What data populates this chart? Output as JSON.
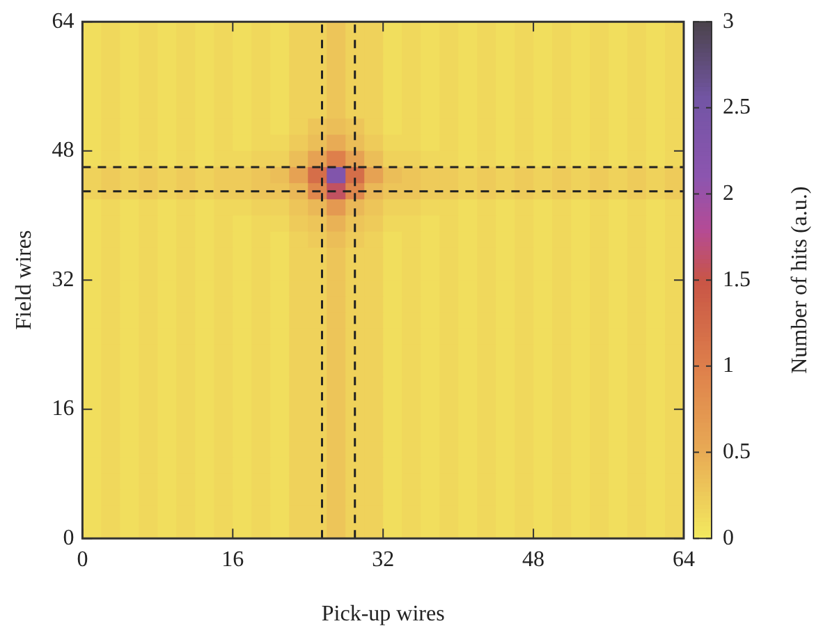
{
  "chart_data": {
    "type": "heatmap",
    "xlabel": "Pick-up wires",
    "ylabel": "Field wires",
    "clabel": "Number of hits (a.u.)",
    "xlim": [
      0,
      64
    ],
    "ylim": [
      0,
      64
    ],
    "xticks": [
      0,
      16,
      32,
      48,
      64
    ],
    "yticks": [
      0,
      16,
      32,
      48,
      64
    ],
    "clim": [
      0,
      3
    ],
    "cticks": [
      0,
      0.5,
      1,
      1.5,
      2,
      2.5,
      3
    ],
    "ref_lines": [
      {
        "axis": "x",
        "value": 25.5,
        "color": "#222222",
        "line_style": "dashed"
      },
      {
        "axis": "x",
        "value": 29,
        "color": "#222222",
        "line_style": "dashed"
      },
      {
        "axis": "y",
        "value": 43,
        "color": "#222222",
        "line_style": "dashed"
      },
      {
        "axis": "y",
        "value": 46,
        "color": "#222222",
        "line_style": "dashed"
      }
    ],
    "cells": [
      [
        0.1,
        0.15,
        0.1,
        0.15,
        0.1,
        0.15,
        0.1,
        0.15,
        0.1,
        0.15,
        0.1,
        0.2,
        0.2,
        0.3,
        0.2,
        0.2,
        0.1,
        0.15,
        0.1,
        0.15,
        0.1,
        0.15,
        0.1,
        0.15,
        0.1,
        0.15,
        0.1,
        0.15,
        0.1,
        0.15,
        0.1,
        0.15
      ],
      [
        0.1,
        0.15,
        0.1,
        0.15,
        0.1,
        0.15,
        0.1,
        0.15,
        0.1,
        0.15,
        0.1,
        0.2,
        0.2,
        0.3,
        0.2,
        0.2,
        0.1,
        0.15,
        0.1,
        0.15,
        0.1,
        0.15,
        0.1,
        0.15,
        0.1,
        0.15,
        0.1,
        0.15,
        0.1,
        0.15,
        0.1,
        0.15
      ],
      [
        0.1,
        0.15,
        0.1,
        0.15,
        0.1,
        0.15,
        0.1,
        0.15,
        0.1,
        0.15,
        0.1,
        0.2,
        0.2,
        0.3,
        0.2,
        0.2,
        0.1,
        0.15,
        0.1,
        0.15,
        0.1,
        0.15,
        0.1,
        0.15,
        0.1,
        0.15,
        0.1,
        0.15,
        0.1,
        0.15,
        0.1,
        0.15
      ],
      [
        0.1,
        0.15,
        0.1,
        0.15,
        0.1,
        0.15,
        0.1,
        0.15,
        0.1,
        0.15,
        0.1,
        0.2,
        0.2,
        0.3,
        0.2,
        0.2,
        0.1,
        0.15,
        0.1,
        0.15,
        0.1,
        0.15,
        0.1,
        0.15,
        0.1,
        0.15,
        0.1,
        0.15,
        0.1,
        0.15,
        0.1,
        0.15
      ],
      [
        0.1,
        0.15,
        0.1,
        0.15,
        0.1,
        0.15,
        0.1,
        0.15,
        0.1,
        0.15,
        0.1,
        0.2,
        0.2,
        0.3,
        0.2,
        0.2,
        0.1,
        0.15,
        0.1,
        0.15,
        0.1,
        0.15,
        0.1,
        0.15,
        0.1,
        0.15,
        0.1,
        0.15,
        0.1,
        0.15,
        0.1,
        0.15
      ],
      [
        0.1,
        0.15,
        0.1,
        0.15,
        0.1,
        0.15,
        0.1,
        0.15,
        0.1,
        0.15,
        0.1,
        0.2,
        0.2,
        0.3,
        0.2,
        0.2,
        0.1,
        0.15,
        0.1,
        0.15,
        0.1,
        0.15,
        0.1,
        0.15,
        0.1,
        0.15,
        0.1,
        0.15,
        0.1,
        0.15,
        0.1,
        0.15
      ],
      [
        0.1,
        0.15,
        0.1,
        0.15,
        0.1,
        0.15,
        0.1,
        0.15,
        0.1,
        0.15,
        0.1,
        0.2,
        0.3,
        0.35,
        0.3,
        0.2,
        0.1,
        0.15,
        0.1,
        0.15,
        0.1,
        0.15,
        0.1,
        0.15,
        0.1,
        0.15,
        0.1,
        0.15,
        0.1,
        0.15,
        0.1,
        0.15
      ],
      [
        0.1,
        0.15,
        0.1,
        0.15,
        0.1,
        0.15,
        0.1,
        0.15,
        0.1,
        0.15,
        0.15,
        0.25,
        0.35,
        0.5,
        0.35,
        0.25,
        0.15,
        0.15,
        0.1,
        0.15,
        0.1,
        0.15,
        0.1,
        0.15,
        0.1,
        0.15,
        0.1,
        0.15,
        0.1,
        0.15,
        0.1,
        0.15
      ],
      [
        0.1,
        0.15,
        0.1,
        0.15,
        0.1,
        0.15,
        0.1,
        0.15,
        0.15,
        0.2,
        0.2,
        0.35,
        0.6,
        1.0,
        0.6,
        0.35,
        0.2,
        0.2,
        0.15,
        0.15,
        0.1,
        0.15,
        0.1,
        0.15,
        0.1,
        0.15,
        0.1,
        0.15,
        0.1,
        0.15,
        0.1,
        0.15
      ],
      [
        0.2,
        0.25,
        0.2,
        0.25,
        0.2,
        0.25,
        0.2,
        0.25,
        0.25,
        0.3,
        0.35,
        0.6,
        1.2,
        2.3,
        1.2,
        0.6,
        0.35,
        0.3,
        0.25,
        0.25,
        0.2,
        0.25,
        0.2,
        0.25,
        0.2,
        0.25,
        0.2,
        0.25,
        0.2,
        0.25,
        0.2,
        0.25
      ],
      [
        0.2,
        0.25,
        0.2,
        0.25,
        0.2,
        0.25,
        0.2,
        0.25,
        0.25,
        0.3,
        0.3,
        0.4,
        0.9,
        1.6,
        0.9,
        0.4,
        0.3,
        0.3,
        0.25,
        0.25,
        0.2,
        0.25,
        0.2,
        0.25,
        0.2,
        0.25,
        0.2,
        0.25,
        0.2,
        0.25,
        0.2,
        0.25
      ],
      [
        0.1,
        0.15,
        0.1,
        0.15,
        0.1,
        0.15,
        0.1,
        0.15,
        0.15,
        0.2,
        0.2,
        0.3,
        0.4,
        0.7,
        0.4,
        0.3,
        0.2,
        0.2,
        0.15,
        0.15,
        0.1,
        0.15,
        0.1,
        0.15,
        0.1,
        0.15,
        0.1,
        0.15,
        0.1,
        0.15,
        0.1,
        0.15
      ],
      [
        0.1,
        0.15,
        0.1,
        0.15,
        0.1,
        0.15,
        0.1,
        0.15,
        0.1,
        0.15,
        0.15,
        0.25,
        0.3,
        0.45,
        0.3,
        0.25,
        0.15,
        0.15,
        0.1,
        0.15,
        0.1,
        0.15,
        0.1,
        0.15,
        0.1,
        0.15,
        0.1,
        0.15,
        0.1,
        0.15,
        0.1,
        0.15
      ],
      [
        0.1,
        0.15,
        0.1,
        0.15,
        0.1,
        0.15,
        0.1,
        0.15,
        0.1,
        0.15,
        0.1,
        0.2,
        0.25,
        0.35,
        0.25,
        0.2,
        0.1,
        0.15,
        0.1,
        0.15,
        0.1,
        0.15,
        0.1,
        0.15,
        0.1,
        0.15,
        0.1,
        0.15,
        0.1,
        0.15,
        0.1,
        0.15
      ],
      [
        0.1,
        0.15,
        0.1,
        0.15,
        0.1,
        0.15,
        0.1,
        0.15,
        0.1,
        0.15,
        0.1,
        0.2,
        0.2,
        0.3,
        0.2,
        0.2,
        0.1,
        0.15,
        0.1,
        0.15,
        0.1,
        0.15,
        0.1,
        0.15,
        0.1,
        0.15,
        0.1,
        0.15,
        0.1,
        0.15,
        0.1,
        0.15
      ],
      [
        0.1,
        0.15,
        0.1,
        0.15,
        0.1,
        0.15,
        0.1,
        0.15,
        0.1,
        0.15,
        0.1,
        0.2,
        0.2,
        0.3,
        0.2,
        0.2,
        0.1,
        0.15,
        0.1,
        0.15,
        0.1,
        0.15,
        0.1,
        0.15,
        0.1,
        0.15,
        0.1,
        0.15,
        0.1,
        0.15,
        0.1,
        0.15
      ],
      [
        0.1,
        0.15,
        0.1,
        0.15,
        0.1,
        0.15,
        0.1,
        0.15,
        0.1,
        0.15,
        0.1,
        0.2,
        0.2,
        0.3,
        0.2,
        0.2,
        0.1,
        0.15,
        0.1,
        0.15,
        0.1,
        0.15,
        0.1,
        0.15,
        0.1,
        0.15,
        0.1,
        0.15,
        0.1,
        0.15,
        0.1,
        0.15
      ],
      [
        0.1,
        0.15,
        0.1,
        0.15,
        0.1,
        0.15,
        0.1,
        0.15,
        0.1,
        0.15,
        0.1,
        0.2,
        0.2,
        0.3,
        0.2,
        0.2,
        0.1,
        0.15,
        0.1,
        0.15,
        0.1,
        0.15,
        0.1,
        0.15,
        0.1,
        0.15,
        0.1,
        0.15,
        0.1,
        0.15,
        0.1,
        0.15
      ],
      [
        0.1,
        0.15,
        0.1,
        0.15,
        0.1,
        0.15,
        0.1,
        0.15,
        0.1,
        0.15,
        0.1,
        0.2,
        0.2,
        0.3,
        0.2,
        0.2,
        0.1,
        0.15,
        0.1,
        0.15,
        0.1,
        0.15,
        0.1,
        0.15,
        0.1,
        0.15,
        0.1,
        0.15,
        0.1,
        0.15,
        0.1,
        0.15
      ],
      [
        0.1,
        0.15,
        0.1,
        0.15,
        0.1,
        0.15,
        0.1,
        0.15,
        0.1,
        0.15,
        0.1,
        0.2,
        0.2,
        0.3,
        0.2,
        0.2,
        0.1,
        0.15,
        0.1,
        0.15,
        0.1,
        0.15,
        0.1,
        0.15,
        0.1,
        0.15,
        0.1,
        0.15,
        0.1,
        0.15,
        0.1,
        0.15
      ],
      [
        0.1,
        0.15,
        0.1,
        0.15,
        0.1,
        0.15,
        0.1,
        0.15,
        0.1,
        0.15,
        0.1,
        0.2,
        0.2,
        0.3,
        0.2,
        0.2,
        0.1,
        0.15,
        0.1,
        0.15,
        0.1,
        0.15,
        0.1,
        0.15,
        0.1,
        0.15,
        0.1,
        0.15,
        0.1,
        0.15,
        0.1,
        0.15
      ],
      [
        0.1,
        0.15,
        0.1,
        0.15,
        0.1,
        0.15,
        0.1,
        0.15,
        0.1,
        0.15,
        0.1,
        0.2,
        0.2,
        0.3,
        0.2,
        0.2,
        0.1,
        0.15,
        0.1,
        0.15,
        0.1,
        0.15,
        0.1,
        0.15,
        0.1,
        0.15,
        0.1,
        0.15,
        0.1,
        0.15,
        0.1,
        0.15
      ],
      [
        0.1,
        0.15,
        0.1,
        0.15,
        0.1,
        0.15,
        0.1,
        0.15,
        0.1,
        0.15,
        0.1,
        0.2,
        0.2,
        0.3,
        0.2,
        0.2,
        0.1,
        0.15,
        0.1,
        0.15,
        0.1,
        0.15,
        0.1,
        0.15,
        0.1,
        0.15,
        0.1,
        0.15,
        0.1,
        0.15,
        0.1,
        0.15
      ],
      [
        0.1,
        0.15,
        0.1,
        0.15,
        0.1,
        0.15,
        0.1,
        0.15,
        0.1,
        0.15,
        0.1,
        0.2,
        0.2,
        0.3,
        0.2,
        0.2,
        0.1,
        0.15,
        0.1,
        0.15,
        0.1,
        0.15,
        0.1,
        0.15,
        0.1,
        0.15,
        0.1,
        0.15,
        0.1,
        0.15,
        0.1,
        0.15
      ],
      [
        0.1,
        0.15,
        0.1,
        0.15,
        0.1,
        0.15,
        0.1,
        0.15,
        0.1,
        0.15,
        0.1,
        0.2,
        0.2,
        0.3,
        0.2,
        0.2,
        0.1,
        0.15,
        0.1,
        0.15,
        0.1,
        0.15,
        0.1,
        0.15,
        0.1,
        0.15,
        0.1,
        0.15,
        0.1,
        0.15,
        0.1,
        0.15
      ],
      [
        0.1,
        0.15,
        0.1,
        0.15,
        0.1,
        0.15,
        0.1,
        0.15,
        0.1,
        0.15,
        0.1,
        0.2,
        0.2,
        0.3,
        0.2,
        0.2,
        0.1,
        0.15,
        0.1,
        0.15,
        0.1,
        0.15,
        0.1,
        0.15,
        0.1,
        0.15,
        0.1,
        0.15,
        0.1,
        0.15,
        0.1,
        0.15
      ],
      [
        0.1,
        0.15,
        0.1,
        0.15,
        0.1,
        0.15,
        0.1,
        0.15,
        0.1,
        0.15,
        0.1,
        0.2,
        0.2,
        0.3,
        0.2,
        0.2,
        0.1,
        0.15,
        0.1,
        0.15,
        0.1,
        0.15,
        0.1,
        0.15,
        0.1,
        0.15,
        0.1,
        0.15,
        0.1,
        0.15,
        0.1,
        0.15
      ],
      [
        0.1,
        0.15,
        0.1,
        0.15,
        0.1,
        0.15,
        0.1,
        0.15,
        0.1,
        0.15,
        0.1,
        0.2,
        0.2,
        0.3,
        0.2,
        0.2,
        0.1,
        0.15,
        0.1,
        0.15,
        0.1,
        0.15,
        0.1,
        0.15,
        0.1,
        0.15,
        0.1,
        0.15,
        0.1,
        0.15,
        0.1,
        0.15
      ],
      [
        0.1,
        0.15,
        0.1,
        0.15,
        0.1,
        0.15,
        0.1,
        0.15,
        0.1,
        0.15,
        0.1,
        0.2,
        0.2,
        0.3,
        0.2,
        0.2,
        0.1,
        0.15,
        0.1,
        0.15,
        0.1,
        0.15,
        0.1,
        0.15,
        0.1,
        0.15,
        0.1,
        0.15,
        0.1,
        0.15,
        0.1,
        0.15
      ],
      [
        0.1,
        0.15,
        0.1,
        0.15,
        0.1,
        0.15,
        0.1,
        0.15,
        0.1,
        0.15,
        0.1,
        0.2,
        0.2,
        0.3,
        0.2,
        0.2,
        0.1,
        0.15,
        0.1,
        0.15,
        0.1,
        0.15,
        0.1,
        0.15,
        0.1,
        0.15,
        0.1,
        0.15,
        0.1,
        0.15,
        0.1,
        0.15
      ],
      [
        0.1,
        0.15,
        0.1,
        0.15,
        0.1,
        0.15,
        0.1,
        0.15,
        0.1,
        0.15,
        0.1,
        0.2,
        0.2,
        0.3,
        0.2,
        0.2,
        0.1,
        0.15,
        0.1,
        0.15,
        0.1,
        0.15,
        0.1,
        0.15,
        0.1,
        0.15,
        0.1,
        0.15,
        0.1,
        0.15,
        0.1,
        0.15
      ],
      [
        0.1,
        0.15,
        0.1,
        0.15,
        0.1,
        0.15,
        0.1,
        0.15,
        0.1,
        0.15,
        0.1,
        0.2,
        0.2,
        0.3,
        0.2,
        0.2,
        0.1,
        0.15,
        0.1,
        0.15,
        0.1,
        0.15,
        0.1,
        0.15,
        0.1,
        0.15,
        0.1,
        0.15,
        0.1,
        0.15,
        0.1,
        0.15
      ]
    ]
  }
}
